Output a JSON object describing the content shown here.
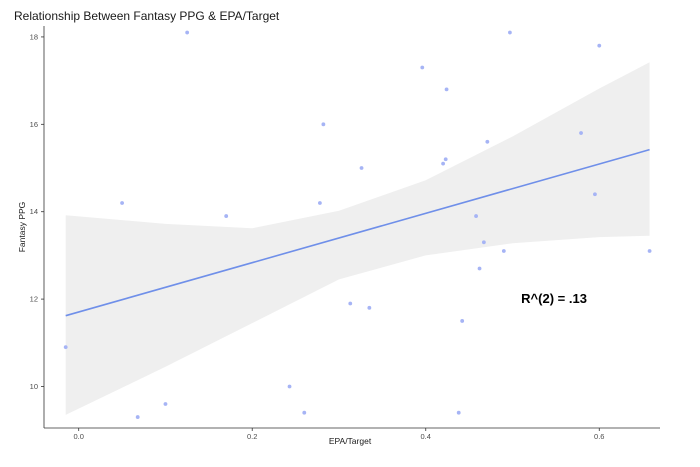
{
  "chart_data": {
    "type": "scatter",
    "title": "Relationship Between Fantasy PPG & EPA/Target",
    "xlabel": "EPA/Target",
    "ylabel": "Fantasy PPG",
    "xlim": [
      -0.04,
      0.67
    ],
    "ylim": [
      9.05,
      18.25
    ],
    "x_ticks": [
      0.0,
      0.2,
      0.4,
      0.6
    ],
    "x_tick_labels": [
      "0.0",
      "0.2",
      "0.4",
      "0.6"
    ],
    "y_ticks": [
      10,
      12,
      14,
      16,
      18
    ],
    "y_tick_labels": [
      "10",
      "12",
      "14",
      "16",
      "18"
    ],
    "grid": false,
    "points": [
      {
        "x": -0.015,
        "y": 10.9
      },
      {
        "x": 0.05,
        "y": 14.2
      },
      {
        "x": 0.068,
        "y": 9.3
      },
      {
        "x": 0.1,
        "y": 9.6
      },
      {
        "x": 0.125,
        "y": 18.1
      },
      {
        "x": 0.17,
        "y": 13.9
      },
      {
        "x": 0.243,
        "y": 10.0
      },
      {
        "x": 0.26,
        "y": 9.4
      },
      {
        "x": 0.278,
        "y": 14.2
      },
      {
        "x": 0.282,
        "y": 16.0
      },
      {
        "x": 0.313,
        "y": 11.9
      },
      {
        "x": 0.326,
        "y": 15.0
      },
      {
        "x": 0.335,
        "y": 11.8
      },
      {
        "x": 0.396,
        "y": 17.3
      },
      {
        "x": 0.42,
        "y": 15.1
      },
      {
        "x": 0.423,
        "y": 15.2
      },
      {
        "x": 0.424,
        "y": 16.8
      },
      {
        "x": 0.438,
        "y": 9.4
      },
      {
        "x": 0.442,
        "y": 11.5
      },
      {
        "x": 0.458,
        "y": 13.9
      },
      {
        "x": 0.462,
        "y": 12.7
      },
      {
        "x": 0.467,
        "y": 13.3
      },
      {
        "x": 0.471,
        "y": 15.6
      },
      {
        "x": 0.49,
        "y": 13.1
      },
      {
        "x": 0.497,
        "y": 18.1
      },
      {
        "x": 0.579,
        "y": 15.8
      },
      {
        "x": 0.595,
        "y": 14.4
      },
      {
        "x": 0.6,
        "y": 17.8
      },
      {
        "x": 0.658,
        "y": 13.1
      }
    ],
    "trend_line": {
      "x": [
        -0.015,
        0.658
      ],
      "y": [
        11.62,
        15.42
      ]
    },
    "confidence_band": {
      "x": [
        -0.015,
        0.1,
        0.2,
        0.3,
        0.4,
        0.5,
        0.6,
        0.658
      ],
      "upper": [
        13.92,
        13.72,
        13.62,
        14.02,
        14.72,
        15.72,
        16.82,
        17.42
      ],
      "lower": [
        9.35,
        10.45,
        11.45,
        12.45,
        13.0,
        13.28,
        13.42,
        13.45
      ]
    },
    "annotation": "R^(2) = .13",
    "annotation_position": {
      "x": 0.51,
      "y": 12.0
    },
    "point_color": "#a6b4f5",
    "line_color": "#6f8fe9",
    "band_color": "#efefef"
  }
}
